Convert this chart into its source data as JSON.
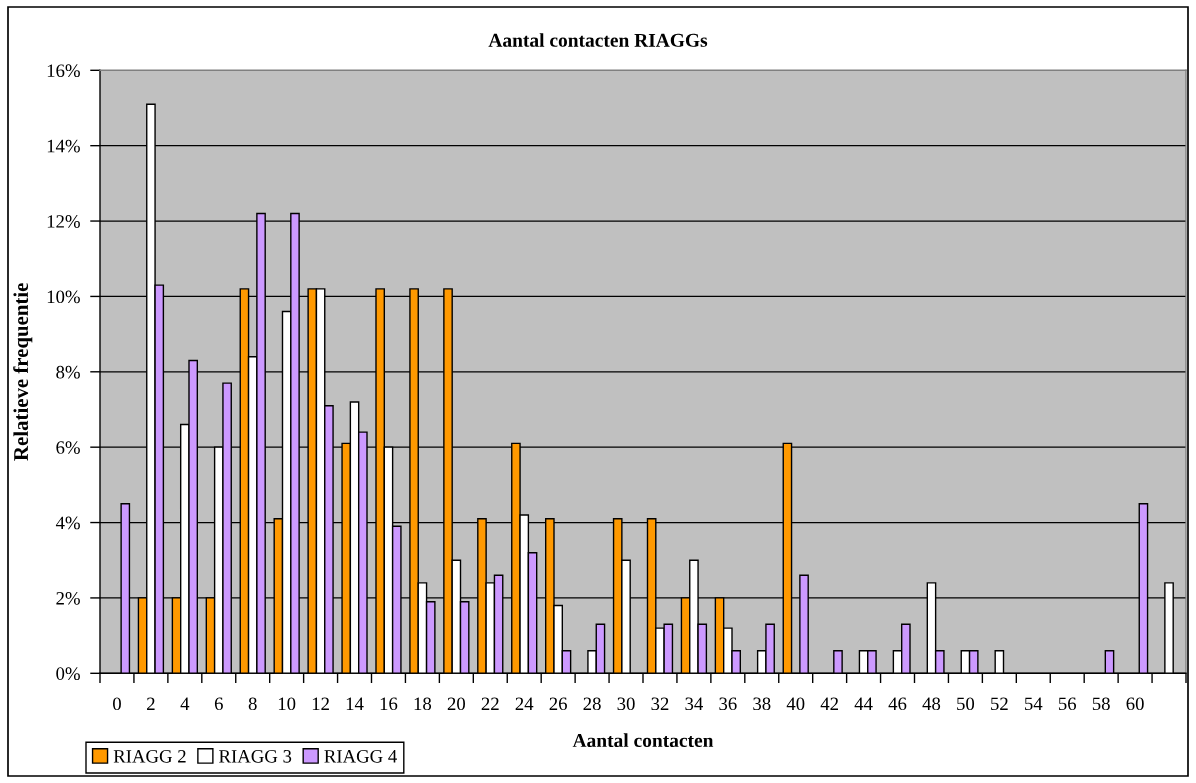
{
  "chart_data": {
    "type": "bar",
    "title": "Aantal contacten RIAGGs",
    "xlabel": "Aantal contacten",
    "ylabel": "Relatieve frequentie",
    "categories": [
      "0",
      "2",
      "4",
      "6",
      "8",
      "10",
      "12",
      "14",
      "16",
      "18",
      "20",
      "22",
      "24",
      "26",
      "28",
      "30",
      "32",
      "34",
      "36",
      "38",
      "40",
      "42",
      "44",
      "46",
      "48",
      "50",
      "52",
      "54",
      "56",
      "58",
      "60",
      null
    ],
    "series": [
      {
        "name": "RIAGG 2",
        "color": "#ff9900",
        "values": [
          null,
          2.0,
          2.0,
          2.0,
          10.2,
          4.1,
          10.2,
          6.1,
          10.2,
          10.2,
          10.2,
          4.1,
          6.1,
          4.1,
          null,
          4.1,
          4.1,
          2.0,
          2.0,
          null,
          6.1,
          null,
          null,
          null,
          null,
          null,
          null,
          null,
          null,
          null,
          null,
          null
        ]
      },
      {
        "name": "RIAGG 3",
        "color": "#ffffff",
        "values": [
          null,
          15.1,
          6.6,
          6.0,
          8.4,
          9.6,
          10.2,
          7.2,
          6.0,
          2.4,
          3.0,
          2.4,
          4.2,
          1.8,
          0.6,
          3.0,
          1.2,
          3.0,
          1.2,
          0.6,
          null,
          null,
          0.6,
          0.6,
          2.4,
          0.6,
          0.6,
          null,
          null,
          null,
          null,
          2.4
        ]
      },
      {
        "name": "RIAGG 4",
        "color": "#cc99ff",
        "values": [
          4.5,
          10.3,
          8.3,
          7.7,
          12.2,
          12.2,
          7.1,
          6.4,
          3.9,
          1.9,
          1.9,
          2.6,
          3.2,
          0.6,
          1.3,
          null,
          1.3,
          1.3,
          0.6,
          1.3,
          2.6,
          0.6,
          0.6,
          1.3,
          0.6,
          0.6,
          null,
          null,
          null,
          0.6,
          4.5,
          null
        ]
      }
    ],
    "ylim": [
      0,
      16
    ],
    "yticks": [
      {
        "value": 0,
        "label": "0%"
      },
      {
        "value": 2,
        "label": "2%"
      },
      {
        "value": 4,
        "label": "4%"
      },
      {
        "value": 6,
        "label": "6%"
      },
      {
        "value": 8,
        "label": "8%"
      },
      {
        "value": 10,
        "label": "10%"
      },
      {
        "value": 12,
        "label": "12%"
      },
      {
        "value": 14,
        "label": "14%"
      },
      {
        "value": 16,
        "label": "16%"
      }
    ],
    "grid": "y",
    "legend": "bottom left"
  }
}
